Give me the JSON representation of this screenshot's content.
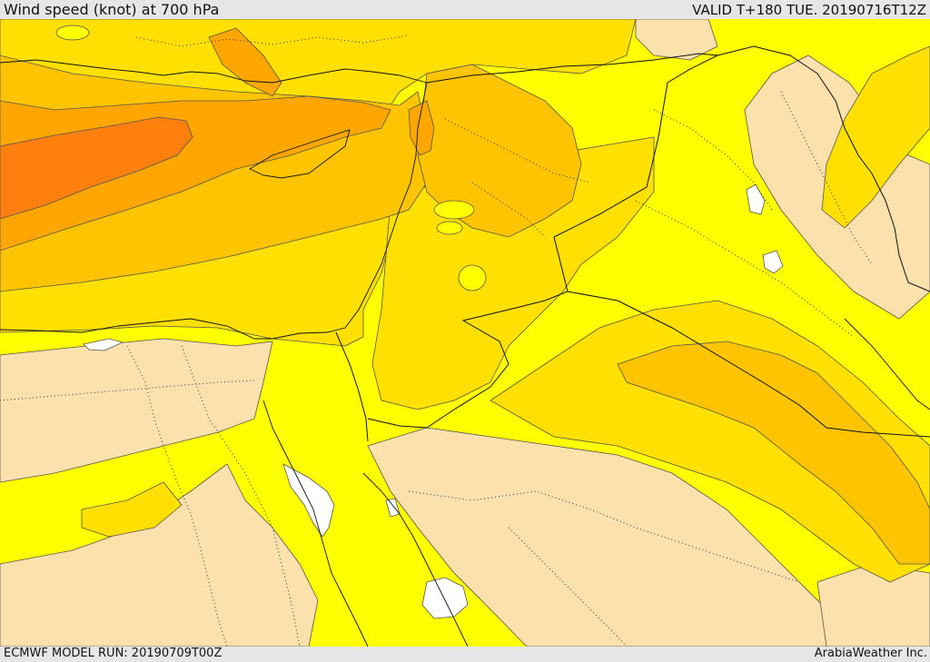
{
  "header": {
    "title": "Wind speed (knot) at 700 hPa",
    "valid": "VALID T+180 TUE. 20190716T12Z"
  },
  "footer": {
    "run": "ECMWF MODEL RUN: 20190709T00Z",
    "brand": "ArabiaWeather Inc."
  },
  "map": {
    "colors": {
      "level_lowest": "#fde1ad",
      "level_low": "#ffff00",
      "level_mid": "#ffe000",
      "level_high": "#ffc400",
      "level_higher": "#ffa600",
      "level_highest": "#ff7f0f",
      "missing": "#ffffff",
      "contour_line": "#555555",
      "border_line": "#111111"
    }
  }
}
